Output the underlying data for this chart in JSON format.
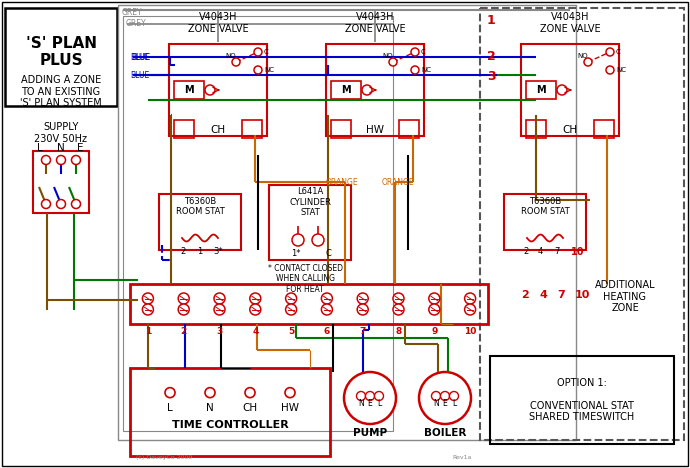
{
  "bg_color": "#ffffff",
  "colors": {
    "red": "#cc0000",
    "blue": "#0000cc",
    "green": "#007700",
    "orange": "#cc6600",
    "brown": "#7b4f00",
    "grey": "#888888",
    "black": "#000000",
    "dkgrey": "#555555"
  },
  "terminal_numbers": [
    "1",
    "2",
    "3",
    "4",
    "5",
    "6",
    "7",
    "8",
    "9",
    "10"
  ],
  "option_text": "OPTION 1:\n\nCONVENTIONAL STAT\nSHARED TIMESWITCH",
  "additional_zone_text": "ADDITIONAL\nHEATING\nZONE",
  "contact_note": "* CONTACT CLOSED\nWHEN CALLING\nFOR HEAT",
  "copyright": "(c) DaveyCo 2009",
  "rev": "Rev1a"
}
